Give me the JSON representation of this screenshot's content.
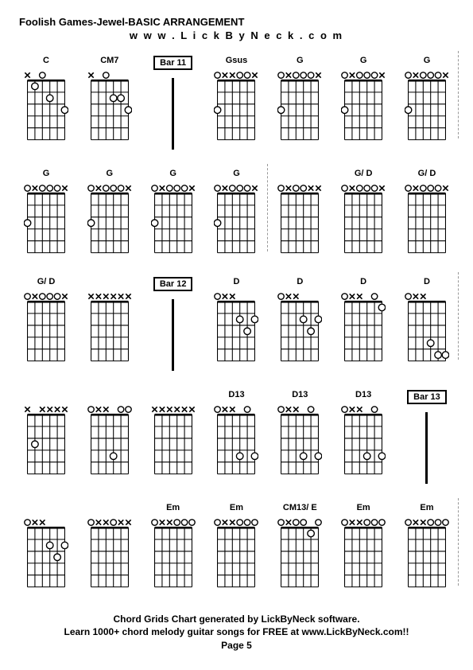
{
  "title": "Foolish Games-Jewel-BASIC ARRANGEMENT",
  "subtitle": "w w w . L i c k B y N e c k . c o m",
  "footer_line1": "Chord Grids Chart generated by LickByNeck software.",
  "footer_line2": "Learn 1000+ chord melody guitar songs for FREE at www.LickByNeck.com!!",
  "footer_line3": "Page 5",
  "diagram_style": {
    "strings": 6,
    "frets": 5,
    "width": 56,
    "height": 96,
    "line_color": "#000000",
    "marker_fill": "#ffffff",
    "marker_stroke": "#000000",
    "marker_radius": 4,
    "x_mark_size": 7,
    "open_radius": 3.5,
    "font_size": 11
  },
  "rows": [
    [
      {
        "type": "chord",
        "label": "C",
        "top": [
          "x",
          "",
          "o",
          "",
          "",
          ""
        ],
        "dots": [
          {
            "s": 2,
            "f": 1
          },
          {
            "s": 4,
            "f": 2
          },
          {
            "s": 6,
            "f": 3
          }
        ]
      },
      {
        "type": "chord",
        "label": "CM7",
        "top": [
          "x",
          "",
          "o",
          "",
          "",
          ""
        ],
        "dots": [
          {
            "s": 4,
            "f": 2
          },
          {
            "s": 5,
            "f": 2
          },
          {
            "s": 6,
            "f": 3
          }
        ]
      },
      {
        "type": "bar",
        "label": "Bar 11"
      },
      {
        "type": "chord",
        "label": "Gsus",
        "top": [
          "o",
          "x",
          "x",
          "o",
          "o",
          "x"
        ],
        "dots": [
          {
            "s": 1,
            "f": 3
          }
        ]
      },
      {
        "type": "chord",
        "label": "G",
        "top": [
          "o",
          "x",
          "o",
          "o",
          "o",
          "x"
        ],
        "dots": [
          {
            "s": 1,
            "f": 3
          }
        ]
      },
      {
        "type": "chord",
        "label": "G",
        "top": [
          "o",
          "x",
          "o",
          "o",
          "o",
          "x"
        ],
        "dots": [
          {
            "s": 1,
            "f": 3
          }
        ]
      },
      {
        "type": "chord",
        "label": "G",
        "top": [
          "o",
          "x",
          "o",
          "o",
          "o",
          "x"
        ],
        "dots": [
          {
            "s": 1,
            "f": 3
          }
        ],
        "sep_after": true
      }
    ],
    [
      {
        "type": "chord",
        "label": "G",
        "top": [
          "o",
          "x",
          "o",
          "o",
          "o",
          "x"
        ],
        "dots": [
          {
            "s": 1,
            "f": 3
          }
        ]
      },
      {
        "type": "chord",
        "label": "G",
        "top": [
          "o",
          "x",
          "o",
          "o",
          "o",
          "x"
        ],
        "dots": [
          {
            "s": 1,
            "f": 3
          }
        ]
      },
      {
        "type": "chord",
        "label": "G",
        "top": [
          "o",
          "x",
          "o",
          "o",
          "o",
          "x"
        ],
        "dots": [
          {
            "s": 1,
            "f": 3
          }
        ]
      },
      {
        "type": "chord",
        "label": "G",
        "top": [
          "o",
          "x",
          "o",
          "o",
          "o",
          "x"
        ],
        "dots": [
          {
            "s": 1,
            "f": 3
          }
        ],
        "sep_after": true
      },
      {
        "type": "chord",
        "label": "",
        "top": [
          "o",
          "x",
          "o",
          "o",
          "x",
          "x"
        ],
        "dots": []
      },
      {
        "type": "chord",
        "label": "G/ D",
        "top": [
          "o",
          "x",
          "o",
          "o",
          "o",
          "x"
        ],
        "dots": []
      },
      {
        "type": "chord",
        "label": "G/ D",
        "top": [
          "o",
          "x",
          "o",
          "o",
          "o",
          "x"
        ],
        "dots": []
      }
    ],
    [
      {
        "type": "chord",
        "label": "G/ D",
        "top": [
          "o",
          "x",
          "o",
          "o",
          "o",
          "x"
        ],
        "dots": []
      },
      {
        "type": "chord",
        "label": "",
        "top": [
          "x",
          "x",
          "x",
          "x",
          "x",
          "x"
        ],
        "dots": []
      },
      {
        "type": "bar",
        "label": "Bar 12"
      },
      {
        "type": "chord",
        "label": "D",
        "top": [
          "o",
          "x",
          "x",
          "",
          "",
          ""
        ],
        "dots": [
          {
            "s": 4,
            "f": 2
          },
          {
            "s": 6,
            "f": 2
          },
          {
            "s": 5,
            "f": 3
          }
        ]
      },
      {
        "type": "chord",
        "label": "D",
        "top": [
          "o",
          "x",
          "x",
          "",
          "",
          ""
        ],
        "dots": [
          {
            "s": 4,
            "f": 2
          },
          {
            "s": 6,
            "f": 2
          },
          {
            "s": 5,
            "f": 3
          }
        ]
      },
      {
        "type": "chord",
        "label": "D",
        "top": [
          "o",
          "x",
          "x",
          "",
          "o",
          ""
        ],
        "dots": [
          {
            "s": 6,
            "f": 1
          }
        ]
      },
      {
        "type": "chord",
        "label": "D",
        "top": [
          "o",
          "x",
          "x",
          "",
          "",
          ""
        ],
        "dots": [
          {
            "s": 4,
            "f": 4
          },
          {
            "s": 5,
            "f": 5
          },
          {
            "s": 6,
            "f": 5
          }
        ],
        "sep_after": true
      }
    ],
    [
      {
        "type": "chord",
        "label": "",
        "top": [
          "x",
          "",
          "x",
          "x",
          "x",
          "x"
        ],
        "dots": [
          {
            "s": 2,
            "f": 3
          }
        ]
      },
      {
        "type": "chord",
        "label": "",
        "top": [
          "o",
          "x",
          "x",
          "",
          "o",
          "o"
        ],
        "dots": [
          {
            "s": 4,
            "f": 4
          }
        ]
      },
      {
        "type": "chord",
        "label": "",
        "top": [
          "x",
          "x",
          "x",
          "x",
          "x",
          "x"
        ],
        "dots": []
      },
      {
        "type": "chord",
        "label": "D13",
        "top": [
          "o",
          "x",
          "x",
          "",
          "o",
          ""
        ],
        "dots": [
          {
            "s": 4,
            "f": 4
          },
          {
            "s": 6,
            "f": 4
          }
        ]
      },
      {
        "type": "chord",
        "label": "D13",
        "top": [
          "o",
          "x",
          "x",
          "",
          "o",
          ""
        ],
        "dots": [
          {
            "s": 4,
            "f": 4
          },
          {
            "s": 6,
            "f": 4
          }
        ]
      },
      {
        "type": "chord",
        "label": "D13",
        "top": [
          "o",
          "x",
          "x",
          "",
          "o",
          ""
        ],
        "dots": [
          {
            "s": 4,
            "f": 4
          },
          {
            "s": 6,
            "f": 4
          }
        ]
      },
      {
        "type": "bar",
        "label": "Bar 13"
      }
    ],
    [
      {
        "type": "chord",
        "label": "",
        "top": [
          "o",
          "x",
          "x",
          "",
          "",
          ""
        ],
        "dots": [
          {
            "s": 4,
            "f": 2
          },
          {
            "s": 5,
            "f": 3
          },
          {
            "s": 6,
            "f": 2
          }
        ]
      },
      {
        "type": "chord",
        "label": "",
        "top": [
          "o",
          "x",
          "x",
          "o",
          "x",
          "x"
        ],
        "dots": []
      },
      {
        "type": "chord",
        "label": "Em",
        "top": [
          "o",
          "x",
          "x",
          "o",
          "o",
          "o"
        ],
        "dots": []
      },
      {
        "type": "chord",
        "label": "Em",
        "top": [
          "o",
          "x",
          "x",
          "o",
          "o",
          "o"
        ],
        "dots": []
      },
      {
        "type": "chord",
        "label": "CM13/ E",
        "top": [
          "o",
          "x",
          "o",
          "o",
          "",
          "o"
        ],
        "dots": [
          {
            "s": 5,
            "f": 1
          }
        ]
      },
      {
        "type": "chord",
        "label": "Em",
        "top": [
          "o",
          "x",
          "x",
          "o",
          "o",
          "o"
        ],
        "dots": []
      },
      {
        "type": "chord",
        "label": "Em",
        "top": [
          "o",
          "x",
          "x",
          "o",
          "o",
          "o"
        ],
        "dots": [],
        "sep_after": true
      }
    ]
  ]
}
